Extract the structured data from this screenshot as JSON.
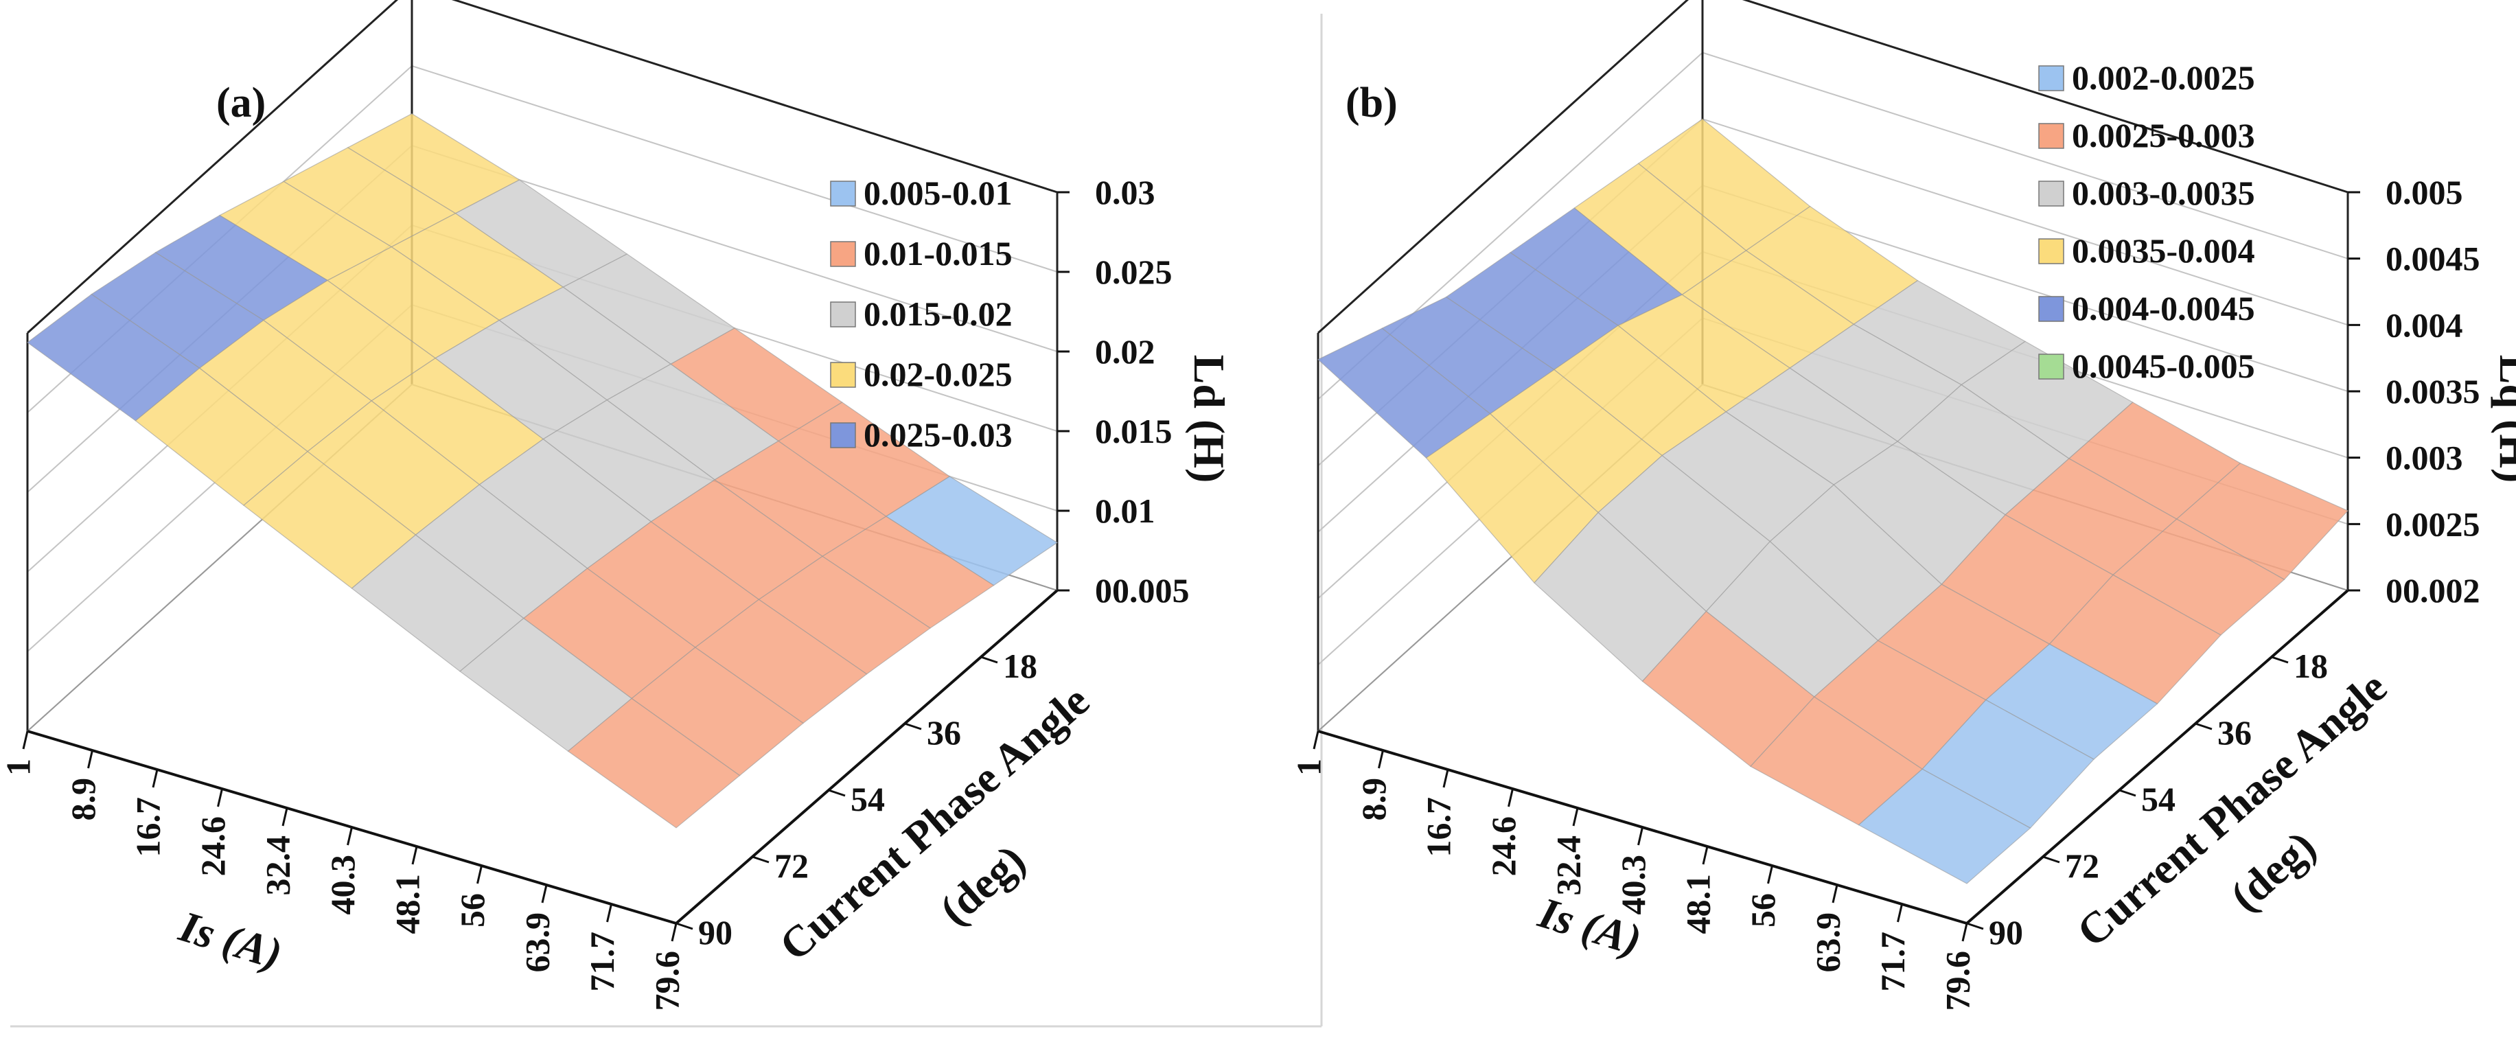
{
  "chart_data": [
    {
      "panel_label": "(a)",
      "type": "surface",
      "xlabel": "Is (A)",
      "ylabel": "Current Phase Angle",
      "ylabel_unit": "(deg)",
      "zlabel": "Ld (H)",
      "x_ticks": [
        "1",
        "8.9",
        "16.7",
        "24.6",
        "32.4",
        "40.3",
        "48.1",
        "56",
        "63.9",
        "71.7",
        "79.6"
      ],
      "y_ticks": [
        "18",
        "36",
        "54",
        "72",
        "90"
      ],
      "z_ticks": [
        "00.005",
        "0.01",
        "0.015",
        "0.02",
        "0.025",
        "0.03"
      ],
      "zlim": [
        0.005,
        0.03
      ],
      "legend": [
        {
          "label": "0.005-0.01",
          "color": "#9cc3f0"
        },
        {
          "label": "0.01-0.015",
          "color": "#f7a583"
        },
        {
          "label": "0.015-0.02",
          "color": "#d0d0d0"
        },
        {
          "label": "0.02-0.025",
          "color": "#fbdc7c"
        },
        {
          "label": "0.025-0.03",
          "color": "#7e96dc"
        }
      ],
      "surface_z": [
        [
          0.022,
          0.0235,
          0.025,
          0.0265,
          0.0278,
          0.0288,
          0.0294
        ],
        [
          0.02,
          0.0215,
          0.023,
          0.0245,
          0.0256,
          0.0262,
          0.0265
        ],
        [
          0.0175,
          0.019,
          0.0205,
          0.0217,
          0.0226,
          0.023,
          0.0232
        ],
        [
          0.015,
          0.0163,
          0.0176,
          0.0187,
          0.0194,
          0.0198,
          0.02
        ],
        [
          0.0125,
          0.0136,
          0.0147,
          0.0156,
          0.0162,
          0.0166,
          0.0168
        ],
        [
          0.01,
          0.011,
          0.012,
          0.0128,
          0.0133,
          0.0136,
          0.0138
        ],
        [
          0.008,
          0.0088,
          0.0096,
          0.0102,
          0.0106,
          0.0108,
          0.011
        ]
      ]
    },
    {
      "panel_label": "(b)",
      "type": "surface",
      "xlabel": "Is (A)",
      "ylabel": "Current Phase Angle",
      "ylabel_unit": "(deg)",
      "zlabel": "Lq (H)",
      "x_ticks": [
        "1",
        "8.9",
        "16.7",
        "24.6",
        "32.4",
        "40.3",
        "48.1",
        "56",
        "63.9",
        "71.7",
        "79.6"
      ],
      "y_ticks": [
        "18",
        "36",
        "54",
        "72",
        "90"
      ],
      "z_ticks": [
        "00.002",
        "0.0025",
        "0.003",
        "0.0035",
        "0.004",
        "0.0045",
        "0.005"
      ],
      "zlim": [
        0.002,
        0.005
      ],
      "legend": [
        {
          "label": "0.002-0.0025",
          "color": "#9cc3f0"
        },
        {
          "label": "0.0025-0.003",
          "color": "#f7a583"
        },
        {
          "label": "0.003-0.0035",
          "color": "#d0d0d0"
        },
        {
          "label": "0.0035-0.004",
          "color": "#fbdc7c"
        },
        {
          "label": "0.004-0.0045",
          "color": "#7e96dc"
        },
        {
          "label": "0.0045-0.005",
          "color": "#a5dc94"
        }
      ],
      "surface_z": [
        [
          0.004,
          0.0041,
          0.0042,
          0.0043,
          0.0044,
          0.0046,
          0.0048
        ],
        [
          0.0036,
          0.0037,
          0.0038,
          0.004,
          0.0041,
          0.0042,
          0.0043
        ],
        [
          0.0033,
          0.0034,
          0.0035,
          0.0036,
          0.0037,
          0.0037,
          0.0036
        ],
        [
          0.0031,
          0.0032,
          0.0032,
          0.0033,
          0.0033,
          0.0032,
          0.0031
        ],
        [
          0.0029,
          0.0029,
          0.0029,
          0.0028,
          0.0028,
          0.0028,
          0.0027
        ],
        [
          0.0027,
          0.0027,
          0.0027,
          0.0026,
          0.0026,
          0.0025,
          0.0025
        ],
        [
          0.0026,
          0.0025,
          0.0025,
          0.0024,
          0.0024,
          0.0023,
          0.0023
        ]
      ]
    }
  ]
}
